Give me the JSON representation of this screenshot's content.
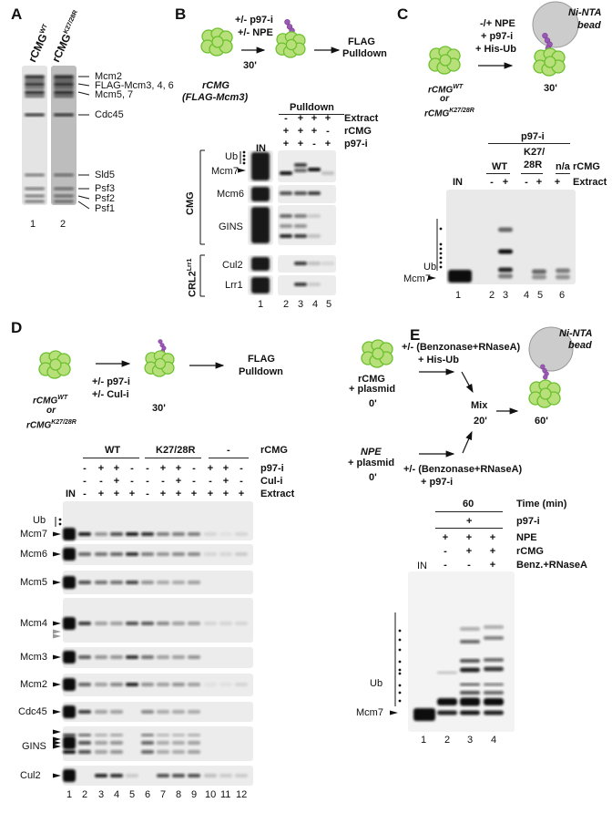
{
  "colors": {
    "cmg_fill": "#b7e07a",
    "cmg_stroke": "#6cbf2e",
    "ubiquitin": "#9b59b6",
    "bead": "#cccccc",
    "gel_bg": "#ececec",
    "band": "#111111"
  },
  "A": {
    "label": "A",
    "col1": "rCMG",
    "col1_sup": "WT",
    "col2": "rCMG",
    "col2_sup": "K27/28R",
    "bands": [
      "Mcm2",
      "FLAG-Mcm3, 4, 6",
      "Mcm5, 7",
      "Cdc45",
      "Sld5",
      "Psf3",
      "Psf2",
      "Psf1"
    ],
    "lanes": [
      "1",
      "2"
    ]
  },
  "B": {
    "label": "B",
    "step_text1": "+/- p97-i",
    "step_text2": "+/- NPE",
    "time": "30'",
    "complex": "rCMG",
    "complex_note": "(FLAG-Mcm3)",
    "readout1": "FLAG",
    "readout2": "Pulldown",
    "pulldown_header": "Pulldown",
    "input": "IN",
    "rows": [
      {
        "label": "Extract",
        "signs": [
          "-",
          "+",
          "+",
          "+"
        ]
      },
      {
        "label": "rCMG",
        "signs": [
          "+",
          "+",
          "+",
          "-"
        ]
      },
      {
        "label": "p97-i",
        "signs": [
          "+",
          "+",
          "-",
          "+"
        ]
      }
    ],
    "blots": {
      "ub": "Ub",
      "mcm7": "Mcm7",
      "mcm6": "Mcm6",
      "gins": "GINS",
      "cul2": "Cul2",
      "lrr1": "Lrr1"
    },
    "group1": "CMG",
    "group2": "CRL2",
    "group2_sup": "Lrr1",
    "lanes": [
      "1",
      "2",
      "3",
      "4",
      "5"
    ]
  },
  "C": {
    "label": "C",
    "step_text1": "-/+ NPE",
    "step_text2": "+ p97-i",
    "step_text3": "+ His-Ub",
    "bead1": "Ni-NTA",
    "bead2": "bead",
    "time": "30'",
    "complex1": "rCMG",
    "complex1_sup": "WT",
    "or": "or",
    "complex2": "rCMG",
    "complex2_sup": "K27/28R",
    "p97_header": "p97-i",
    "groups": [
      "WT",
      "K27/",
      "28R",
      "n/a"
    ],
    "rcmg_label": "rCMG",
    "input": "IN",
    "extract_label": "Extract",
    "extract_signs": [
      "-",
      "+",
      "-",
      "+",
      "+"
    ],
    "ub": "Ub",
    "mcm7": "Mcm7",
    "lanes": [
      "1",
      "2",
      "3",
      "4",
      "5",
      "6"
    ]
  },
  "D": {
    "label": "D",
    "step_text1": "+/- p97-i",
    "step_text2": "+/- Cul-i",
    "time": "30'",
    "readout1": "FLAG",
    "readout2": "Pulldown",
    "complex1": "rCMG",
    "complex1_sup": "WT",
    "or": "or",
    "complex2": "rCMG",
    "complex2_sup": "K27/28R",
    "groups": [
      "WT",
      "K27/28R",
      "-"
    ],
    "rcmg_label": "rCMG",
    "input": "IN",
    "rows": [
      {
        "label": "p97-i",
        "signs": [
          "-",
          "+",
          "+",
          "-",
          "-",
          "+",
          "+",
          "-",
          "+",
          "+",
          "-"
        ]
      },
      {
        "label": "Cul-i",
        "signs": [
          "-",
          "-",
          "+",
          "-",
          "-",
          "-",
          "+",
          "-",
          "-",
          "+",
          "-"
        ]
      },
      {
        "label": "Extract",
        "signs": [
          "-",
          "+",
          "+",
          "+",
          "-",
          "+",
          "+",
          "+",
          "+",
          "+",
          "+"
        ]
      }
    ],
    "blots": [
      "Mcm7",
      "Mcm6",
      "Mcm5",
      "Mcm4",
      "Mcm3",
      "Mcm2",
      "Cdc45",
      "GINS",
      "Cul2"
    ],
    "ub": "Ub",
    "lanes": [
      "1",
      "2",
      "3",
      "4",
      "5",
      "6",
      "7",
      "8",
      "9",
      "10",
      "11",
      "12"
    ]
  },
  "E": {
    "label": "E",
    "src1a": "rCMG",
    "src1b": "+ plasmid",
    "src1_time": "0'",
    "src1_treat1": "+/- (Benzonase+RNaseA)",
    "src1_treat2": "+ His-Ub",
    "src2a": "NPE",
    "src2b": "+ plasmid",
    "src2_time": "0'",
    "src2_treat1": "+/- (Benzonase+RNaseA)",
    "src2_treat2": "+ p97-i",
    "mix": "Mix",
    "mix_time": "20'",
    "end_time": "60'",
    "bead1": "Ni-NTA",
    "bead2": "bead",
    "time_value": "60",
    "time_label": "Time (min)",
    "p97_sign": "+",
    "p97_label": "p97-i",
    "input": "IN",
    "rows": [
      {
        "label": "NPE",
        "signs": [
          "+",
          "+",
          "+"
        ]
      },
      {
        "label": "rCMG",
        "signs": [
          "-",
          "+",
          "+"
        ]
      },
      {
        "label": "Benz.+RNaseA",
        "signs": [
          "-",
          "-",
          "+"
        ]
      }
    ],
    "ub": "Ub",
    "mcm7": "Mcm7",
    "lanes": [
      "1",
      "2",
      "3",
      "4"
    ]
  }
}
